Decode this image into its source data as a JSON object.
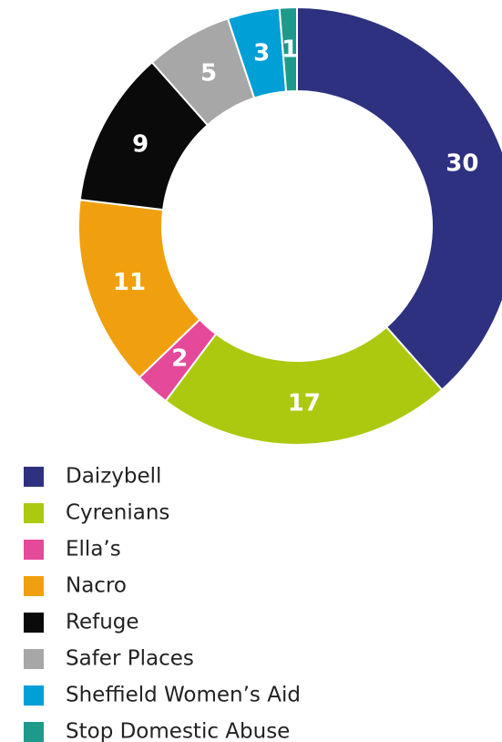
{
  "chart_data": {
    "type": "pie",
    "categories": [
      "Daizybell",
      "Cyrenians",
      "Ella’s",
      "Nacro",
      "Refuge",
      "Safer Places",
      "Sheffield Women’s Aid",
      "Stop Domestic Abuse"
    ],
    "values": [
      30,
      17,
      2,
      11,
      9,
      5,
      3,
      1
    ],
    "colors": [
      "#2e3180",
      "#acc90f",
      "#e5499a",
      "#f0a00f",
      "#0a0a0a",
      "#a7a7a7",
      "#009fd6",
      "#1e9a8b"
    ],
    "donut": true,
    "legend": "bottom"
  }
}
